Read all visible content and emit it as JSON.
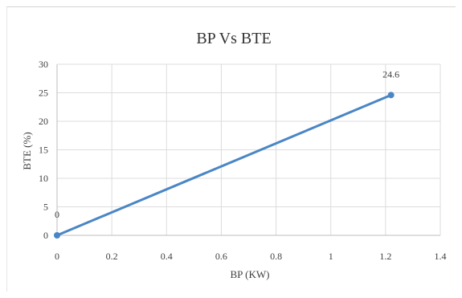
{
  "chart_data": {
    "type": "line",
    "title": "BP Vs BTE",
    "xlabel": "BP  (KW)",
    "ylabel": "BTE    (%)",
    "xlim": [
      0,
      1.4
    ],
    "ylim": [
      0,
      30
    ],
    "x_ticks": [
      "0",
      "0.2",
      "0.4",
      "0.6",
      "0.8",
      "1",
      "1.2",
      "1.4"
    ],
    "y_ticks": [
      "0",
      "5",
      "10",
      "15",
      "20",
      "25",
      "30"
    ],
    "grid": true,
    "legend": "none",
    "series": [
      {
        "color": "#4a86c5",
        "points": [
          {
            "x": 0,
            "y": 0,
            "label": "0"
          },
          {
            "x": 1.22,
            "y": 24.6,
            "label": "24.6"
          }
        ]
      }
    ]
  }
}
